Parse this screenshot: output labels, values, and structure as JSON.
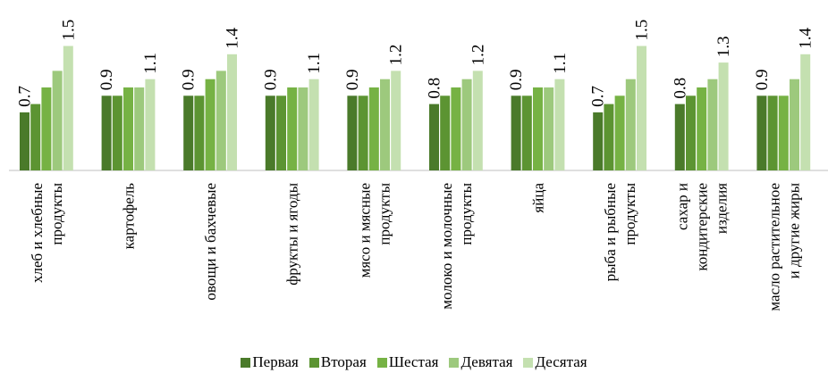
{
  "chart_data": {
    "type": "bar",
    "title": "",
    "xlabel": "",
    "ylabel": "",
    "ylim": [
      0,
      1.6
    ],
    "grid": false,
    "legend_position": "bottom",
    "categories": [
      [
        "хлеб и хлебные",
        "продукты"
      ],
      [
        "картофель"
      ],
      [
        "овощи и бахчевые"
      ],
      [
        "фрукты и ягоды"
      ],
      [
        "мясо и мясные",
        "продукты"
      ],
      [
        "молоко и молочные",
        "продукты"
      ],
      [
        "яйца"
      ],
      [
        "рыба и рыбные",
        "продукты"
      ],
      [
        "сахар и",
        "кондитерские",
        "изделия"
      ],
      [
        "масло растительное",
        "и другие жиры"
      ]
    ],
    "series": [
      {
        "name": "Первая",
        "color": "#4a7a2a",
        "values": [
          0.7,
          0.9,
          0.9,
          0.9,
          0.9,
          0.8,
          0.9,
          0.7,
          0.8,
          0.9
        ]
      },
      {
        "name": "Вторая",
        "color": "#5c9432",
        "values": [
          0.8,
          0.9,
          0.9,
          0.9,
          0.9,
          0.9,
          0.9,
          0.8,
          0.9,
          0.9
        ]
      },
      {
        "name": "Шестая",
        "color": "#76b244",
        "values": [
          1.0,
          1.0,
          1.1,
          1.0,
          1.0,
          1.0,
          1.0,
          0.9,
          1.0,
          0.9
        ]
      },
      {
        "name": "Девятая",
        "color": "#9dc97d",
        "values": [
          1.2,
          1.0,
          1.2,
          1.0,
          1.1,
          1.1,
          1.0,
          1.1,
          1.1,
          1.1
        ]
      },
      {
        "name": "Десятая",
        "color": "#c4e0b0",
        "values": [
          1.5,
          1.1,
          1.4,
          1.1,
          1.2,
          1.2,
          1.1,
          1.5,
          1.3,
          1.4
        ]
      }
    ],
    "data_labels": [
      {
        "category": 0,
        "series": 0,
        "text": "0.7"
      },
      {
        "category": 0,
        "series": 4,
        "text": "1.5"
      },
      {
        "category": 1,
        "series": 0,
        "text": "0.9"
      },
      {
        "category": 1,
        "series": 4,
        "text": "1.1"
      },
      {
        "category": 2,
        "series": 0,
        "text": "0.9"
      },
      {
        "category": 2,
        "series": 4,
        "text": "1.4"
      },
      {
        "category": 3,
        "series": 0,
        "text": "0.9"
      },
      {
        "category": 3,
        "series": 4,
        "text": "1.1"
      },
      {
        "category": 4,
        "series": 0,
        "text": "0.9"
      },
      {
        "category": 4,
        "series": 4,
        "text": "1.2"
      },
      {
        "category": 5,
        "series": 0,
        "text": "0.8"
      },
      {
        "category": 5,
        "series": 4,
        "text": "1.2"
      },
      {
        "category": 6,
        "series": 0,
        "text": "0.9"
      },
      {
        "category": 6,
        "series": 4,
        "text": "1.1"
      },
      {
        "category": 7,
        "series": 0,
        "text": "0.7"
      },
      {
        "category": 7,
        "series": 4,
        "text": "1.5"
      },
      {
        "category": 8,
        "series": 0,
        "text": "0.8"
      },
      {
        "category": 8,
        "series": 4,
        "text": "1.3"
      },
      {
        "category": 9,
        "series": 0,
        "text": "0.9"
      },
      {
        "category": 9,
        "series": 4,
        "text": "1.4"
      }
    ]
  }
}
